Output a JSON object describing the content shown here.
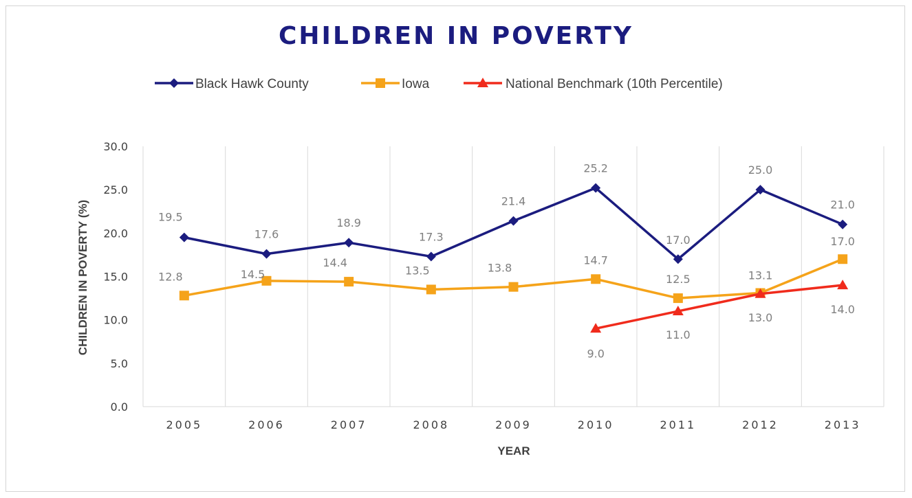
{
  "chart_data": {
    "type": "line",
    "title": "CHILDREN IN POVERTY",
    "xlabel": "YEAR",
    "ylabel": "CHILDREN IN POVERTY (%)",
    "categories": [
      "2005",
      "2006",
      "2007",
      "2008",
      "2009",
      "2010",
      "2011",
      "2012",
      "2013"
    ],
    "ylim": [
      0,
      30
    ],
    "yticks": [
      "0.0",
      "5.0",
      "10.0",
      "15.0",
      "20.0",
      "25.0",
      "30.0"
    ],
    "grid": "vertical",
    "legend_position": "top",
    "series": [
      {
        "name": "Black Hawk County",
        "color": "#1b1c7f",
        "marker": "diamond",
        "values": [
          19.5,
          17.6,
          18.9,
          17.3,
          21.4,
          25.2,
          17.0,
          25.0,
          21.0
        ],
        "labels": [
          "19.5",
          "17.6",
          "18.9",
          "17.3",
          "21.4",
          "25.2",
          "17.0",
          "25.0",
          "21.0"
        ]
      },
      {
        "name": "Iowa",
        "color": "#f5a31a",
        "marker": "square",
        "values": [
          12.8,
          14.5,
          14.4,
          13.5,
          13.8,
          14.7,
          12.5,
          13.1,
          17.0
        ],
        "labels": [
          "12.8",
          "14.5",
          "14.4",
          "13.5",
          "13.8",
          "14.7",
          "12.5",
          "13.1",
          "17.0"
        ]
      },
      {
        "name": "National Benchmark (10th Percentile)",
        "color": "#f02b1c",
        "marker": "triangle",
        "values": [
          null,
          null,
          null,
          null,
          null,
          9.0,
          11.0,
          13.0,
          14.0
        ],
        "labels": [
          null,
          null,
          null,
          null,
          null,
          "9.0",
          "11.0",
          "13.0",
          "14.0"
        ]
      }
    ]
  }
}
